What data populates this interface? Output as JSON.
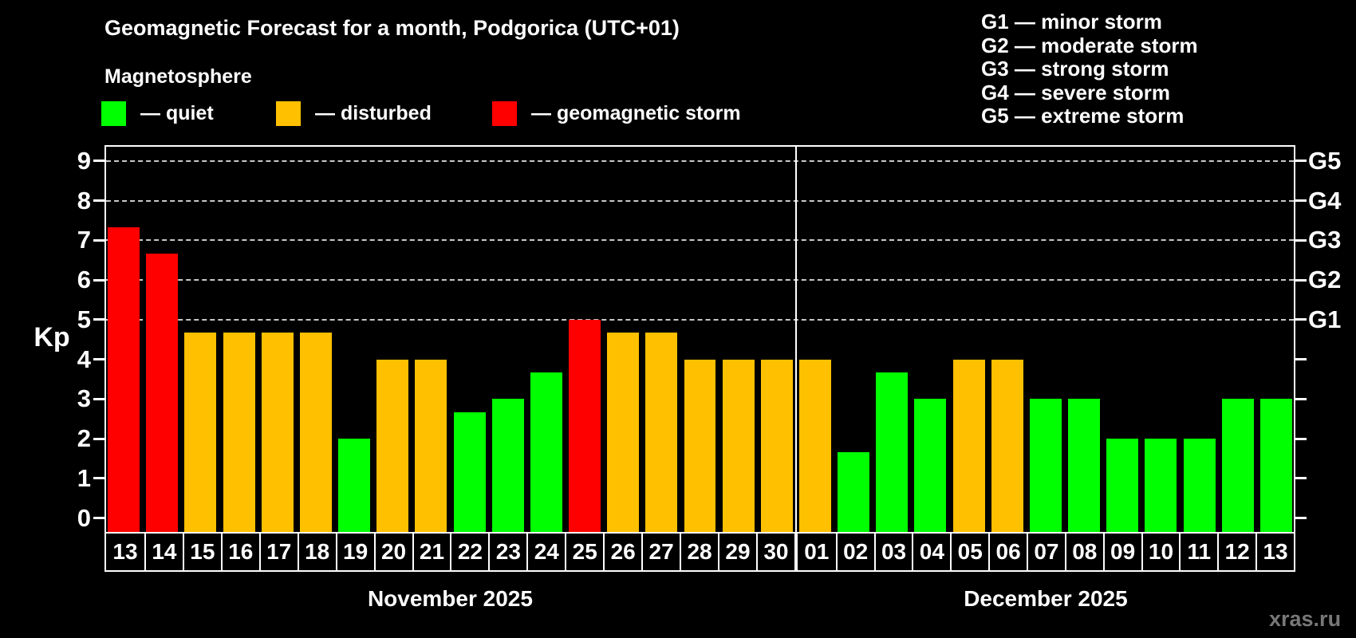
{
  "title": "Geomagnetic Forecast for a month, Podgorica (UTC+01)",
  "subtitle": "Magnetosphere",
  "legend": {
    "items": [
      {
        "label": "— quiet",
        "status": "quiet",
        "color": "#00ff00"
      },
      {
        "label": "— disturbed",
        "status": "disturbed",
        "color": "#ffc000"
      },
      {
        "label": "— geomagnetic storm",
        "status": "storm",
        "color": "#ff0000"
      }
    ]
  },
  "storm_scale_legend": [
    "G1 — minor storm",
    "G2 — moderate storm",
    "G3 — strong storm",
    "G4 — severe storm",
    "G5 — extreme storm"
  ],
  "watermark": "xras.ru",
  "chart_data": {
    "type": "bar",
    "title": "Geomagnetic Forecast for a month, Podgorica (UTC+01)",
    "ylabel": "Kp",
    "ylim": [
      -0.35,
      9.4
    ],
    "yticks": [
      0,
      1,
      2,
      3,
      4,
      5,
      6,
      7,
      8,
      9
    ],
    "grid": "dashed horizontal lines at storm thresholds only",
    "grid_levels": [
      {
        "kp": 5,
        "label": "G1"
      },
      {
        "kp": 6,
        "label": "G2"
      },
      {
        "kp": 7,
        "label": "G3"
      },
      {
        "kp": 8,
        "label": "G4"
      },
      {
        "kp": 9,
        "label": "G5"
      }
    ],
    "status_colors": {
      "quiet": "#00ff00",
      "disturbed": "#ffc000",
      "storm": "#ff0000"
    },
    "months": [
      {
        "label": "November 2025",
        "days": [
          {
            "day": "13",
            "kp": 7.33,
            "status": "storm"
          },
          {
            "day": "14",
            "kp": 6.67,
            "status": "storm"
          },
          {
            "day": "15",
            "kp": 4.67,
            "status": "disturbed"
          },
          {
            "day": "16",
            "kp": 4.67,
            "status": "disturbed"
          },
          {
            "day": "17",
            "kp": 4.67,
            "status": "disturbed"
          },
          {
            "day": "18",
            "kp": 4.67,
            "status": "disturbed"
          },
          {
            "day": "19",
            "kp": 2.0,
            "status": "quiet"
          },
          {
            "day": "20",
            "kp": 4.0,
            "status": "disturbed"
          },
          {
            "day": "21",
            "kp": 4.0,
            "status": "disturbed"
          },
          {
            "day": "22",
            "kp": 2.67,
            "status": "quiet"
          },
          {
            "day": "23",
            "kp": 3.0,
            "status": "quiet"
          },
          {
            "day": "24",
            "kp": 3.67,
            "status": "quiet"
          },
          {
            "day": "25",
            "kp": 5.0,
            "status": "storm"
          },
          {
            "day": "26",
            "kp": 4.67,
            "status": "disturbed"
          },
          {
            "day": "27",
            "kp": 4.67,
            "status": "disturbed"
          },
          {
            "day": "28",
            "kp": 4.0,
            "status": "disturbed"
          },
          {
            "day": "29",
            "kp": 4.0,
            "status": "disturbed"
          },
          {
            "day": "30",
            "kp": 4.0,
            "status": "disturbed"
          }
        ]
      },
      {
        "label": "December 2025",
        "days": [
          {
            "day": "01",
            "kp": 4.0,
            "status": "disturbed"
          },
          {
            "day": "02",
            "kp": 1.67,
            "status": "quiet"
          },
          {
            "day": "03",
            "kp": 3.67,
            "status": "quiet"
          },
          {
            "day": "04",
            "kp": 3.0,
            "status": "quiet"
          },
          {
            "day": "05",
            "kp": 4.0,
            "status": "disturbed"
          },
          {
            "day": "06",
            "kp": 4.0,
            "status": "disturbed"
          },
          {
            "day": "07",
            "kp": 3.0,
            "status": "quiet"
          },
          {
            "day": "08",
            "kp": 3.0,
            "status": "quiet"
          },
          {
            "day": "09",
            "kp": 2.0,
            "status": "quiet"
          },
          {
            "day": "10",
            "kp": 2.0,
            "status": "quiet"
          },
          {
            "day": "11",
            "kp": 2.0,
            "status": "quiet"
          },
          {
            "day": "12",
            "kp": 3.0,
            "status": "quiet"
          },
          {
            "day": "13",
            "kp": 3.0,
            "status": "quiet"
          }
        ]
      }
    ]
  }
}
